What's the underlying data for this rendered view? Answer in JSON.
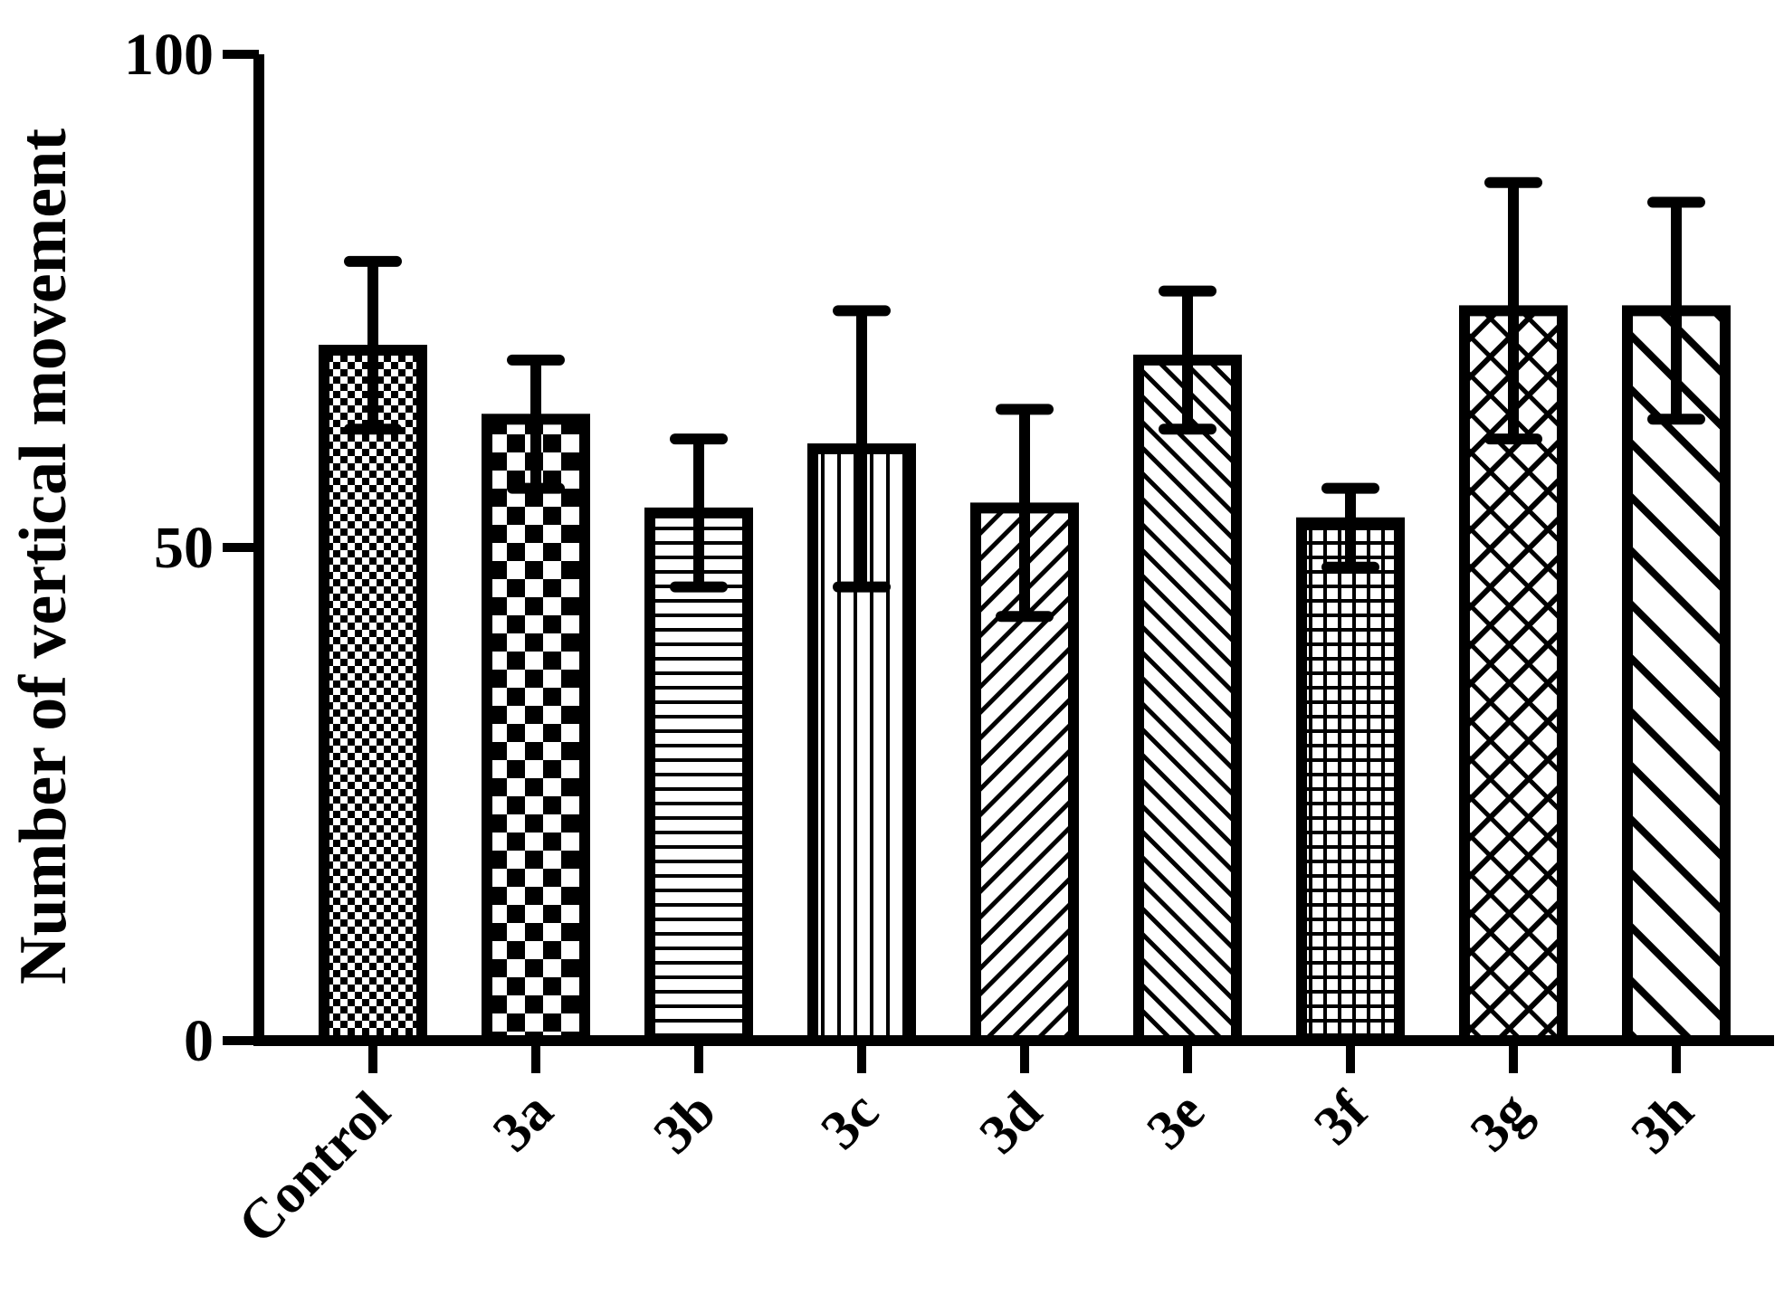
{
  "chart_data": {
    "type": "bar",
    "title": "",
    "xlabel": "",
    "ylabel": "Number of vertical movement",
    "ylim": [
      0,
      100
    ],
    "yticks": [
      "0",
      "50",
      "100"
    ],
    "grid": false,
    "legend": "none",
    "categories": [
      "Control",
      "3a",
      "3b",
      "3c",
      "3d",
      "3e",
      "3f",
      "3g",
      "3h"
    ],
    "values": [
      70,
      63,
      53.5,
      60,
      54,
      69,
      52.5,
      74,
      74
    ],
    "error_upper": [
      79,
      69,
      61,
      74,
      64,
      76,
      56,
      87,
      85
    ],
    "error_lower": [
      62,
      56,
      46,
      46,
      43,
      62,
      48,
      61,
      63
    ],
    "patterns": [
      "fine-check",
      "check",
      "horizontal-lines",
      "vertical-lines",
      "diagonal-forward",
      "diagonal-back",
      "grid",
      "crosshatch-dashed",
      "diagonal-back-wide"
    ],
    "colors": {
      "stroke": "#000000",
      "fill": "#ffffff"
    }
  }
}
